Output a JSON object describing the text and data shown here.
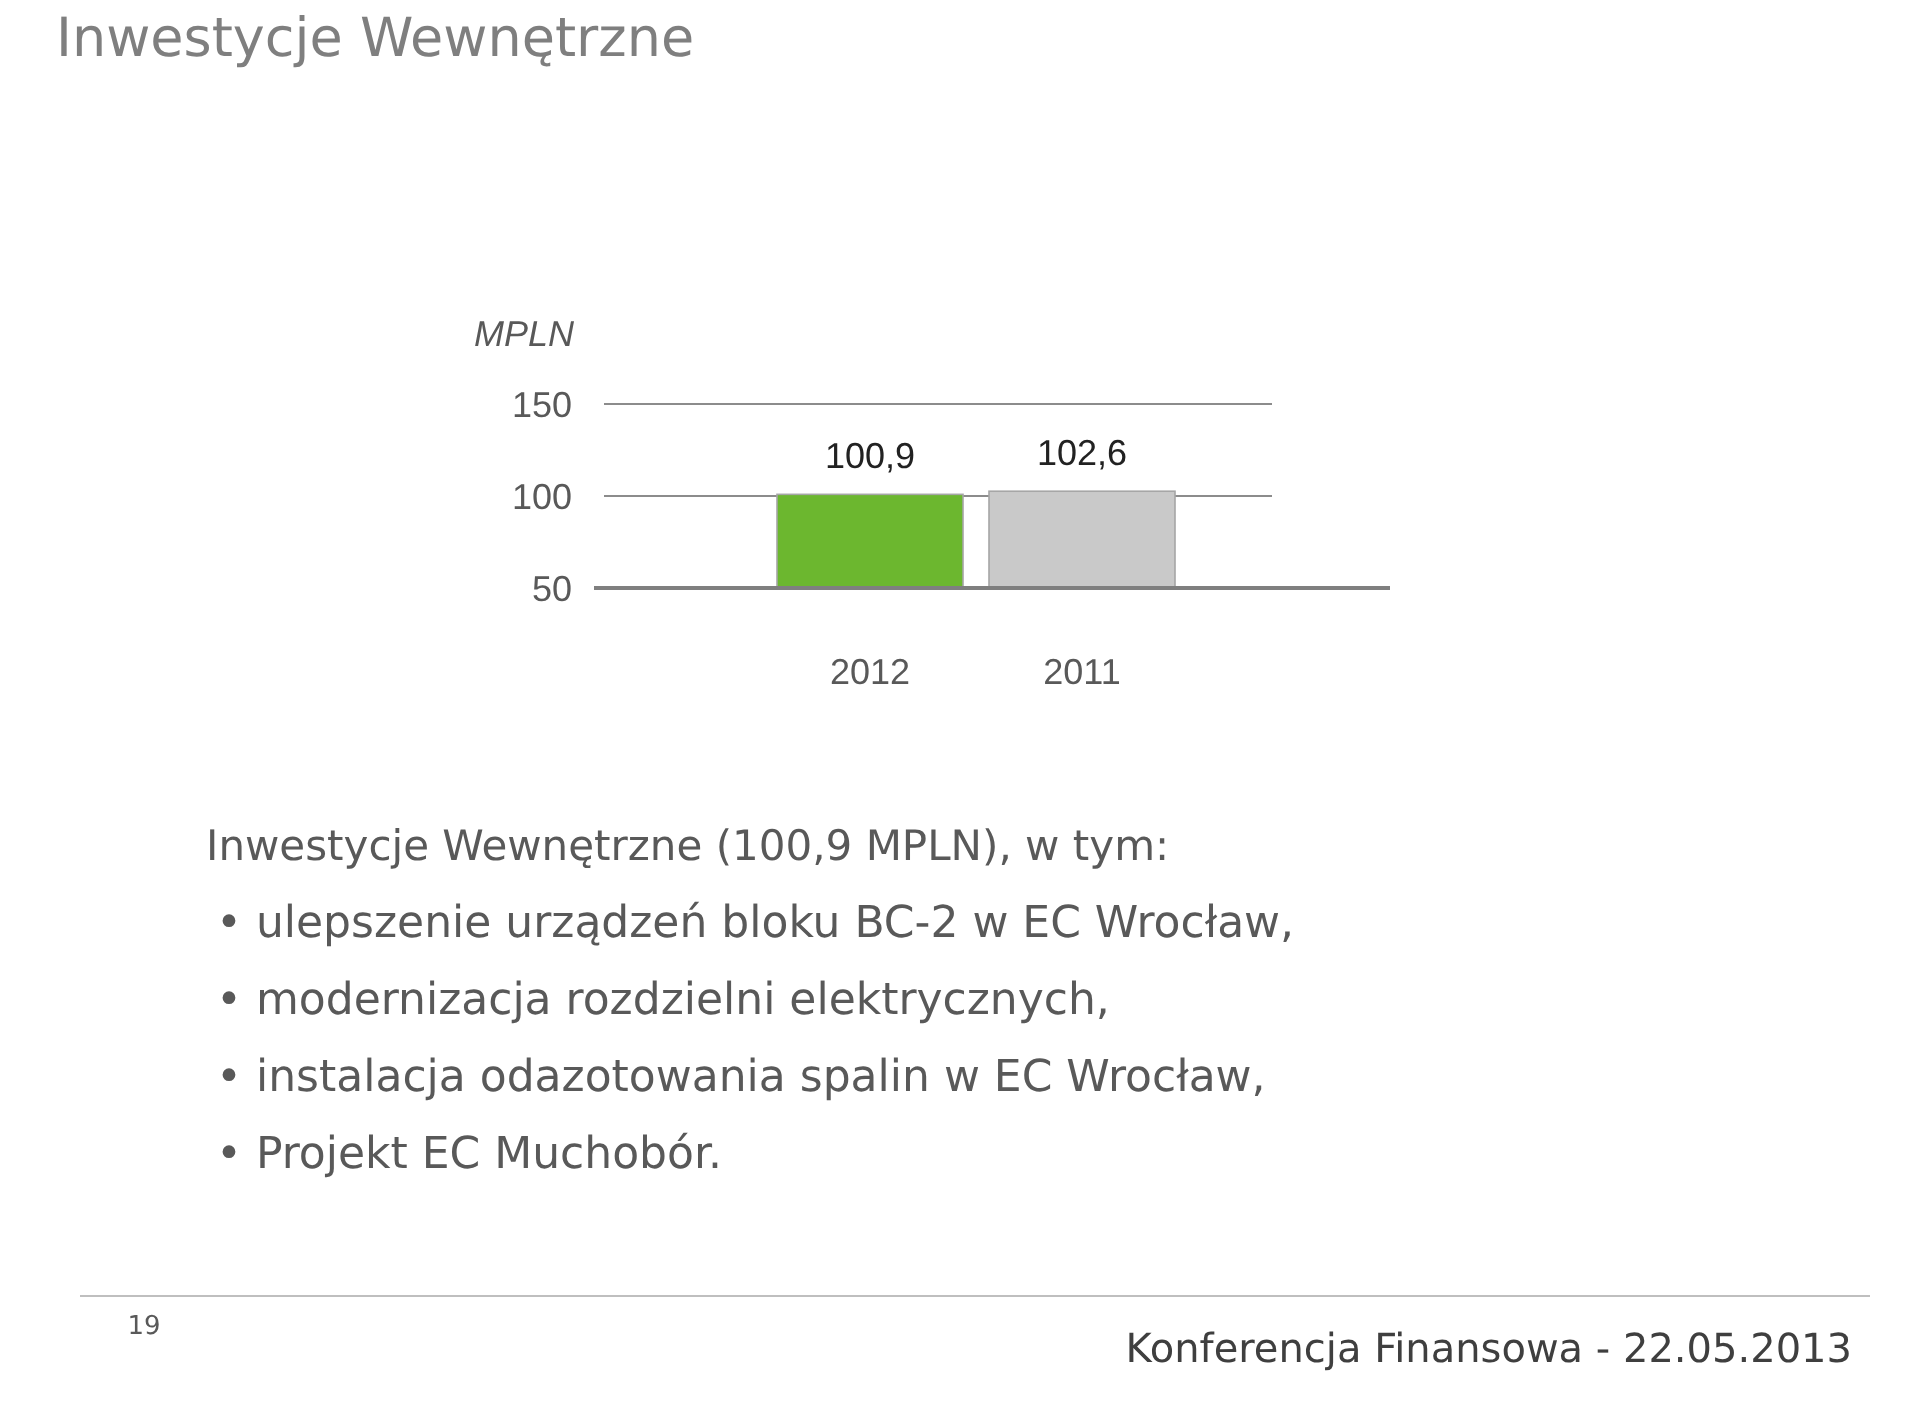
{
  "chart_data": {
    "type": "bar",
    "title": "Inwestycje Wewnętrzne",
    "ylabel": "MPLN",
    "categories": [
      "2012",
      "2011"
    ],
    "values": [
      100.9,
      102.6
    ],
    "colors": [
      "#6cb72f",
      "#c9c9c9"
    ],
    "value_labels": [
      "100,9",
      "102,6"
    ],
    "ylim": [
      50,
      150
    ],
    "yticks": [
      50,
      100,
      150
    ],
    "grid": "y",
    "annotations": [
      "Inwestycje Wewnętrzne (100,9 MPLN), w tym:",
      "• ulepszenie urządzeń bloku BC-2 w EC Wrocław,",
      "• modernizacja rozdzielni elektrycznych,",
      "• instalacja odazotowania spalin w EC Wrocław,",
      "• Projekt EC Muchobór.",
      "19",
      "Konferencja Finansowa - 22.05.2013"
    ]
  }
}
